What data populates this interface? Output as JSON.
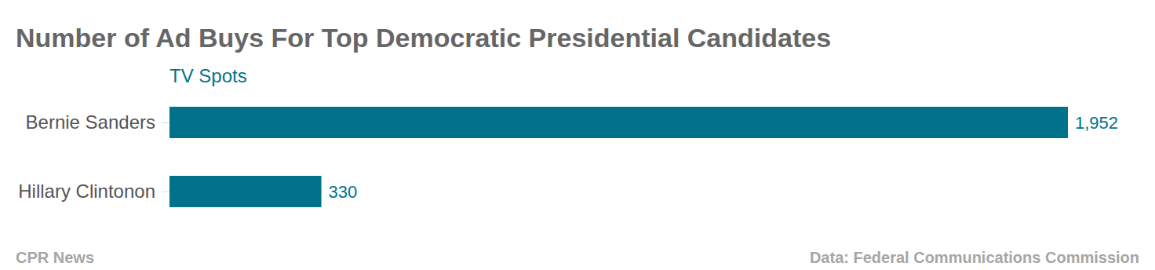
{
  "chart_data": {
    "type": "bar",
    "orientation": "horizontal",
    "title": "Number of Ad Buys For Top Democratic Presidential Candidates",
    "subtitle": "TV Spots",
    "categories": [
      "Bernie Sanders",
      "Hillary Clintonon"
    ],
    "values": [
      1952,
      330
    ],
    "value_labels": [
      "1,952",
      "330"
    ],
    "color": "#00728b",
    "xlim": [
      0,
      1952
    ],
    "data_labels": true,
    "tick_labels": "y",
    "grid": false,
    "credit": "CPR News",
    "source": "Data: Federal Communications Commission"
  }
}
